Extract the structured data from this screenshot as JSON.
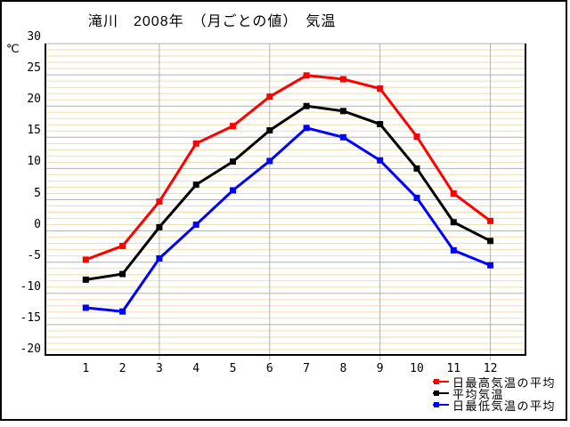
{
  "window": {
    "background": "#ffffff",
    "border_color": "#000000"
  },
  "chart": {
    "title": "滝川　2008年　（月ごとの値）　気温",
    "unit_label": "℃"
  },
  "legend": {
    "items": [
      {
        "label": "日最高気温の平均",
        "color": "#ff0000",
        "series": "daily-max-average"
      },
      {
        "label": "平均気温",
        "color": "#000000",
        "series": "mean"
      },
      {
        "label": "日最低気温の平均",
        "color": "#0000ff",
        "series": "daily-min-average"
      }
    ]
  },
  "chart_data": {
    "type": "line",
    "title": "滝川　2008年　（月ごとの値）　気温",
    "xlabel": "",
    "ylabel": "℃",
    "categories": [
      1,
      2,
      3,
      4,
      5,
      6,
      7,
      8,
      9,
      10,
      11,
      12
    ],
    "ylim": [
      -20,
      30
    ],
    "yticks": [
      30,
      25,
      20,
      15,
      10,
      5,
      0,
      -5,
      -10,
      -15,
      -20
    ],
    "ytick_step_major": 5,
    "ytick_step_minor": 1,
    "x_gridlines_at_months": [
      3,
      6,
      9,
      12
    ],
    "grid": true,
    "legend_position": "bottom-right",
    "series": [
      {
        "name": "日最高気温の平均",
        "color": "#ff0000",
        "values": [
          -4.6,
          -2.4,
          4.7,
          14.0,
          16.8,
          21.5,
          24.9,
          24.3,
          22.8,
          15.1,
          6.0,
          1.6
        ]
      },
      {
        "name": "平均気温",
        "color": "#000000",
        "values": [
          -7.8,
          -6.9,
          0.6,
          7.4,
          11.1,
          16.1,
          20.0,
          19.2,
          17.1,
          10.0,
          1.4,
          -1.6
        ]
      },
      {
        "name": "日最低気温の平均",
        "color": "#0000ff",
        "values": [
          -12.3,
          -12.9,
          -4.4,
          1.0,
          6.5,
          11.2,
          16.5,
          15.0,
          11.3,
          5.3,
          -3.1,
          -5.5
        ]
      }
    ],
    "colors": {
      "minor_grid": "#f0ddae",
      "major_grid": "#b0b0b0",
      "axis": "#000000",
      "background": "#ffffff"
    }
  }
}
